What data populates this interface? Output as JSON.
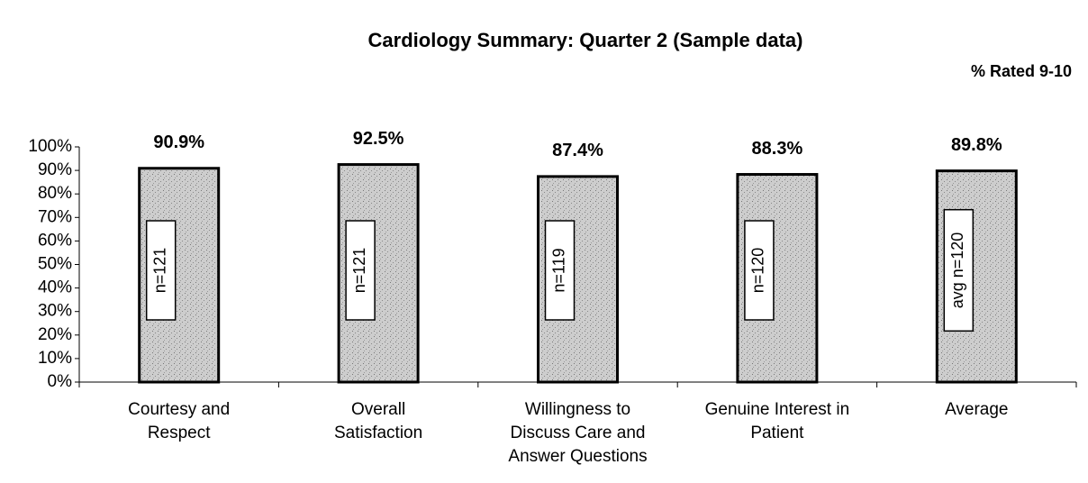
{
  "chart_data": {
    "type": "bar",
    "title": "Cardiology Summary: Quarter 2 (Sample data)",
    "subtitle": "% Rated 9-10",
    "categories": [
      "Courtesy and Respect",
      "Overall Satisfaction",
      "Willingness to Discuss Care and Answer Questions",
      "Genuine Interest in Patient",
      "Average"
    ],
    "values": [
      90.9,
      92.5,
      87.4,
      88.3,
      89.8
    ],
    "value_labels": [
      "90.9%",
      "92.5%",
      "87.4%",
      "88.3%",
      "89.8%"
    ],
    "annotations": [
      "n=121",
      "n=121",
      "n=119",
      "n=120",
      "avg n=120"
    ],
    "color": "#c4c4c4",
    "ylim": [
      0,
      100
    ],
    "yticks": [
      {
        "value": 0,
        "label": "0%"
      },
      {
        "value": 10,
        "label": "10%"
      },
      {
        "value": 20,
        "label": "20%"
      },
      {
        "value": 30,
        "label": "30%"
      },
      {
        "value": 40,
        "label": "40%"
      },
      {
        "value": 50,
        "label": "50%"
      },
      {
        "value": 60,
        "label": "60%"
      },
      {
        "value": 70,
        "label": "70%"
      },
      {
        "value": 80,
        "label": "80%"
      },
      {
        "value": 90,
        "label": "90%"
      },
      {
        "value": 100,
        "label": "100%"
      }
    ],
    "grid": false
  }
}
